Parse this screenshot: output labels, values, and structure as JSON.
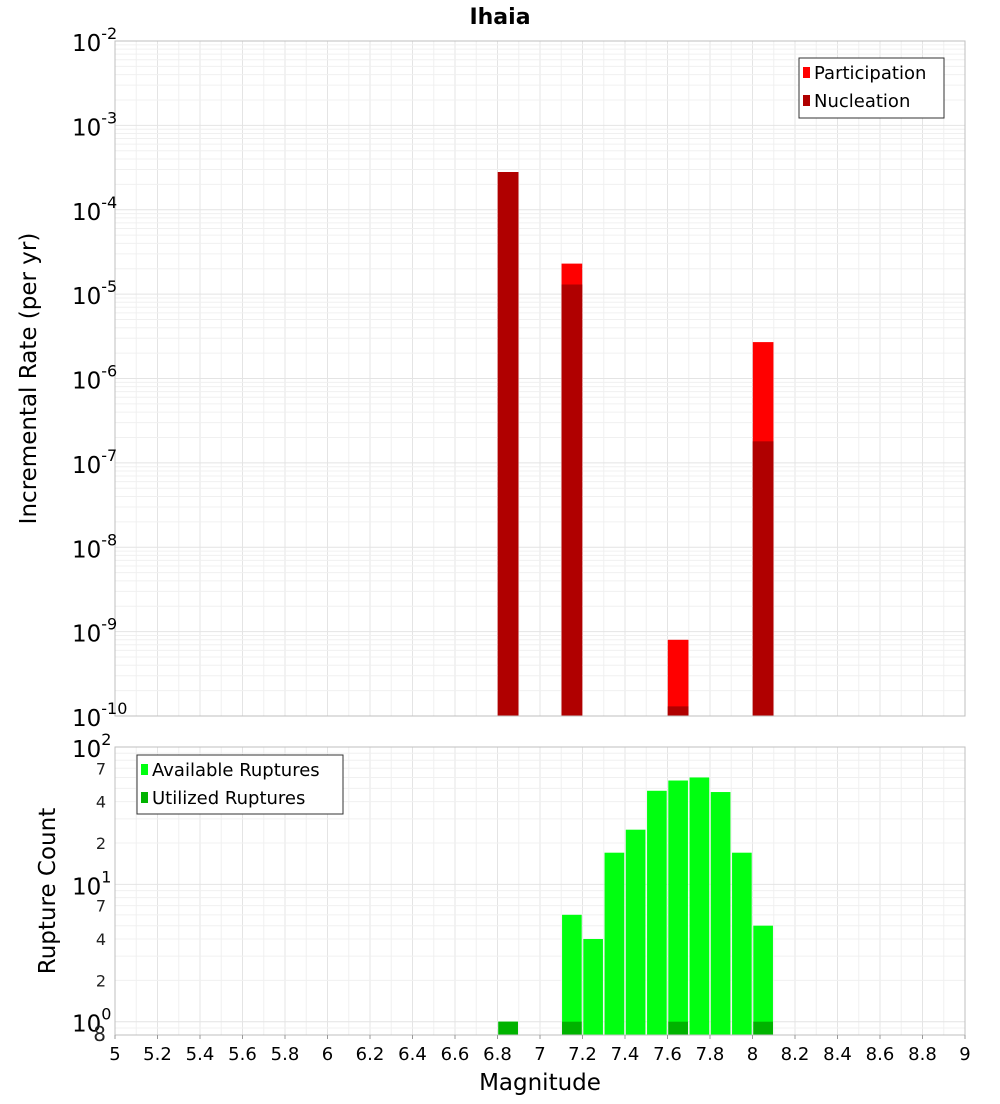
{
  "title": "Ihaia",
  "xlabel": "Magnitude",
  "colors": {
    "participation": "#ff0000",
    "nucleation": "#b00000",
    "available": "#00ff10",
    "utilized": "#00b300",
    "grid_major": "#e4e4e4",
    "grid_minor": "#f0f0f0",
    "frame": "#bfbfbf"
  },
  "chart_data": [
    {
      "type": "bar",
      "ylabel": "Incremental Rate (per yr)",
      "yscale": "log",
      "ylim": [
        1e-10,
        0.01
      ],
      "xlim": [
        5,
        9
      ],
      "bar_width": 0.1,
      "legend_position": "top-right",
      "y_tick_labels": [
        {
          "value": 0.01,
          "base": "10",
          "exp": "-2"
        },
        {
          "value": 0.001,
          "base": "10",
          "exp": "-3"
        },
        {
          "value": 0.0001,
          "base": "10",
          "exp": "-4"
        },
        {
          "value": 1e-05,
          "base": "10",
          "exp": "-5"
        },
        {
          "value": 1e-06,
          "base": "10",
          "exp": "-6"
        },
        {
          "value": 1e-07,
          "base": "10",
          "exp": "-7"
        },
        {
          "value": 1e-08,
          "base": "10",
          "exp": "-8"
        },
        {
          "value": 1e-09,
          "base": "10",
          "exp": "-9"
        },
        {
          "value": 1e-10,
          "base": "10",
          "exp": "-10"
        }
      ],
      "series": [
        {
          "name": "Participation",
          "x": [
            6.85,
            7.15,
            7.65,
            8.05
          ],
          "values": [
            0.00028,
            2.3e-05,
            8e-10,
            2.7e-06
          ]
        },
        {
          "name": "Nucleation",
          "x": [
            6.85,
            7.15,
            7.65,
            8.05
          ],
          "values": [
            0.00028,
            1.3e-05,
            1.3e-10,
            1.8e-07
          ]
        }
      ]
    },
    {
      "type": "bar",
      "ylabel": "Rupture Count",
      "yscale": "log",
      "ylim": [
        0.8,
        100
      ],
      "xlim": [
        5,
        9
      ],
      "bar_width": 0.1,
      "legend_position": "top-left",
      "y_tick_labels": [
        {
          "value": 100,
          "base": "10",
          "exp": "2"
        },
        {
          "value": 70,
          "base": "7",
          "exp": ""
        },
        {
          "value": 40,
          "base": "4",
          "exp": ""
        },
        {
          "value": 20,
          "base": "2",
          "exp": ""
        },
        {
          "value": 10,
          "base": "10",
          "exp": "1"
        },
        {
          "value": 7,
          "base": "7",
          "exp": ""
        },
        {
          "value": 4,
          "base": "4",
          "exp": ""
        },
        {
          "value": 2,
          "base": "2",
          "exp": ""
        },
        {
          "value": 1,
          "base": "10",
          "exp": "0"
        },
        {
          "value": 0.8,
          "base": "8",
          "exp": ""
        }
      ],
      "x_ticks": [
        "5",
        "5.2",
        "5.4",
        "5.6",
        "5.8",
        "6",
        "6.2",
        "6.4",
        "6.6",
        "6.8",
        "7",
        "7.2",
        "7.4",
        "7.6",
        "7.8",
        "8",
        "8.2",
        "8.4",
        "8.6",
        "8.8",
        "9"
      ],
      "series": [
        {
          "name": "Available Ruptures",
          "x": [
            6.85,
            7.15,
            7.25,
            7.35,
            7.45,
            7.55,
            7.65,
            7.75,
            7.85,
            7.95,
            8.05
          ],
          "values": [
            1,
            6,
            4,
            17,
            25,
            48,
            57,
            60,
            47,
            17,
            5
          ]
        },
        {
          "name": "Utilized Ruptures",
          "x": [
            6.85,
            7.15,
            7.65,
            8.05
          ],
          "values": [
            1,
            1,
            1,
            1
          ]
        }
      ]
    }
  ]
}
